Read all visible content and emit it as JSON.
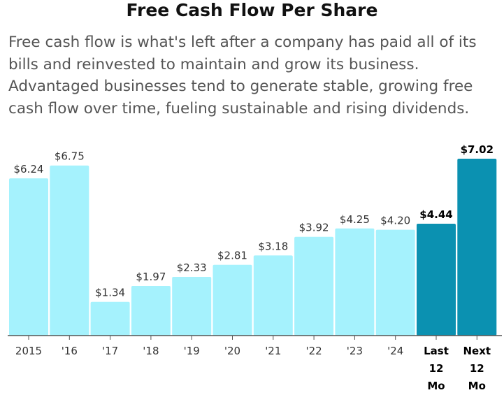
{
  "title": "Free Cash Flow Per Share",
  "description": "Free cash flow is what's left after a company has paid all of its bills and reinvested to maintain and grow its business. Advantaged businesses tend to generate stable, growing free cash flow over time, fueling sustainable and rising dividends.",
  "colors": {
    "bar": "#a5f2fd",
    "bar_highlight": "#0b91b1",
    "axis": "#555555"
  },
  "chart_data": {
    "type": "bar",
    "title": "",
    "xlabel": "",
    "ylabel": "",
    "ylim": [
      0,
      7.02
    ],
    "grid": false,
    "categories": [
      "2015",
      "'16",
      "'17",
      "'18",
      "'19",
      "'20",
      "'21",
      "'22",
      "'23",
      "'24",
      "Last 12 Mo",
      "Next 12 Mo"
    ],
    "category_lines": [
      [
        "2015"
      ],
      [
        "'16"
      ],
      [
        "'17"
      ],
      [
        "'18"
      ],
      [
        "'19"
      ],
      [
        "'20"
      ],
      [
        "'21"
      ],
      [
        "'22"
      ],
      [
        "'23"
      ],
      [
        "'24"
      ],
      [
        "Last",
        "12",
        "Mo"
      ],
      [
        "Next",
        "12",
        "Mo"
      ]
    ],
    "values": [
      6.24,
      6.75,
      1.34,
      1.97,
      2.33,
      2.81,
      3.18,
      3.92,
      4.25,
      4.2,
      4.44,
      7.02
    ],
    "value_labels": [
      "$6.24",
      "$6.75",
      "$1.34",
      "$1.97",
      "$2.33",
      "$2.81",
      "$3.18",
      "$3.92",
      "$4.25",
      "$4.20",
      "$4.44",
      "$7.02"
    ],
    "highlighted": [
      false,
      false,
      false,
      false,
      false,
      false,
      false,
      false,
      false,
      false,
      true,
      true
    ]
  }
}
